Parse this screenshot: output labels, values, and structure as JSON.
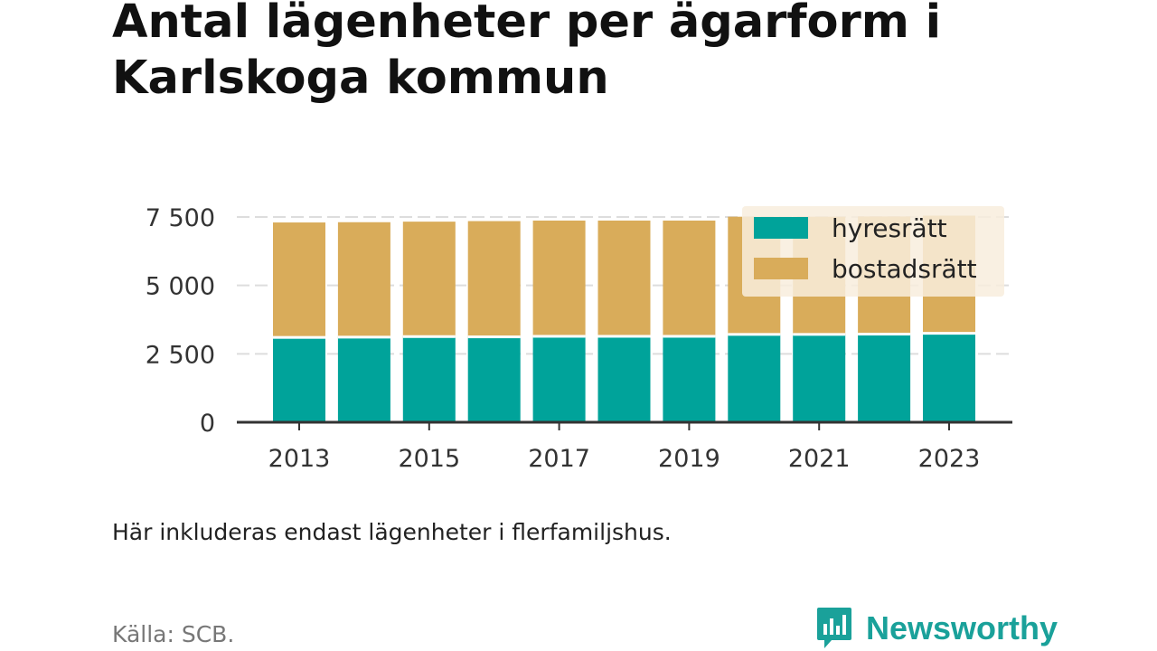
{
  "title": "Antal lägenheter per ägarform i Karlskoga kommun",
  "note": "Här inkluderas endast lägenheter i flerfamiljshus.",
  "source": "Källa: SCB.",
  "brand": "Newsworthy",
  "colors": {
    "hyresratt": "#00a39a",
    "bostadsratt": "#d9ac5a",
    "brand": "#1aa19a",
    "grid": "#dddddd",
    "axis": "#333333",
    "legend_bg": "#f8eddd"
  },
  "chart_data": {
    "type": "bar",
    "stacked": true,
    "categories": [
      "2013",
      "2014",
      "2015",
      "2016",
      "2017",
      "2018",
      "2019",
      "2020",
      "2021",
      "2022",
      "2023"
    ],
    "series": [
      {
        "name": "hyresrätt",
        "values": [
          3100,
          3110,
          3130,
          3120,
          3140,
          3140,
          3140,
          3210,
          3210,
          3220,
          3250
        ]
      },
      {
        "name": "bostadsrätt",
        "values": [
          4200,
          4200,
          4200,
          4230,
          4230,
          4230,
          4230,
          4300,
          4300,
          4300,
          4300
        ]
      }
    ],
    "ylim": [
      0,
      7500
    ],
    "yticks": [
      0,
      2500,
      5000,
      7500
    ],
    "ytick_labels": [
      "0",
      "2 500",
      "5 000",
      "7 500"
    ],
    "xtick_labels": [
      "2013",
      "2015",
      "2017",
      "2019",
      "2021",
      "2023"
    ],
    "grid": true,
    "legend_position": "top-right"
  }
}
